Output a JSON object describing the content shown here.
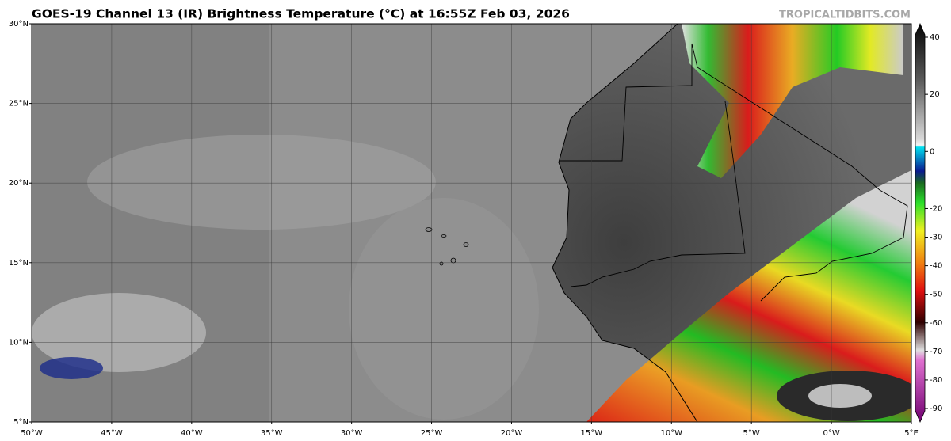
{
  "header": {
    "title": "GOES-19 Channel 13 (IR) Brightness Temperature (°C) at 16:55Z Feb 03, 2026",
    "watermark": "TROPICALTIDBITS.COM"
  },
  "map": {
    "lat_labels": [
      "30°N",
      "25°N",
      "20°N",
      "15°N",
      "10°N",
      "5°N"
    ],
    "lon_labels": [
      "50°W",
      "45°W",
      "40°W",
      "35°W",
      "30°W",
      "25°W",
      "20°W",
      "15°W",
      "10°W",
      "5°W",
      "0°W",
      "5°E"
    ]
  },
  "colorbar": {
    "lim": [
      -90,
      40
    ],
    "ticks": [
      40,
      20,
      0,
      -20,
      -30,
      -40,
      -50,
      -60,
      -70,
      -80,
      -90
    ]
  }
}
